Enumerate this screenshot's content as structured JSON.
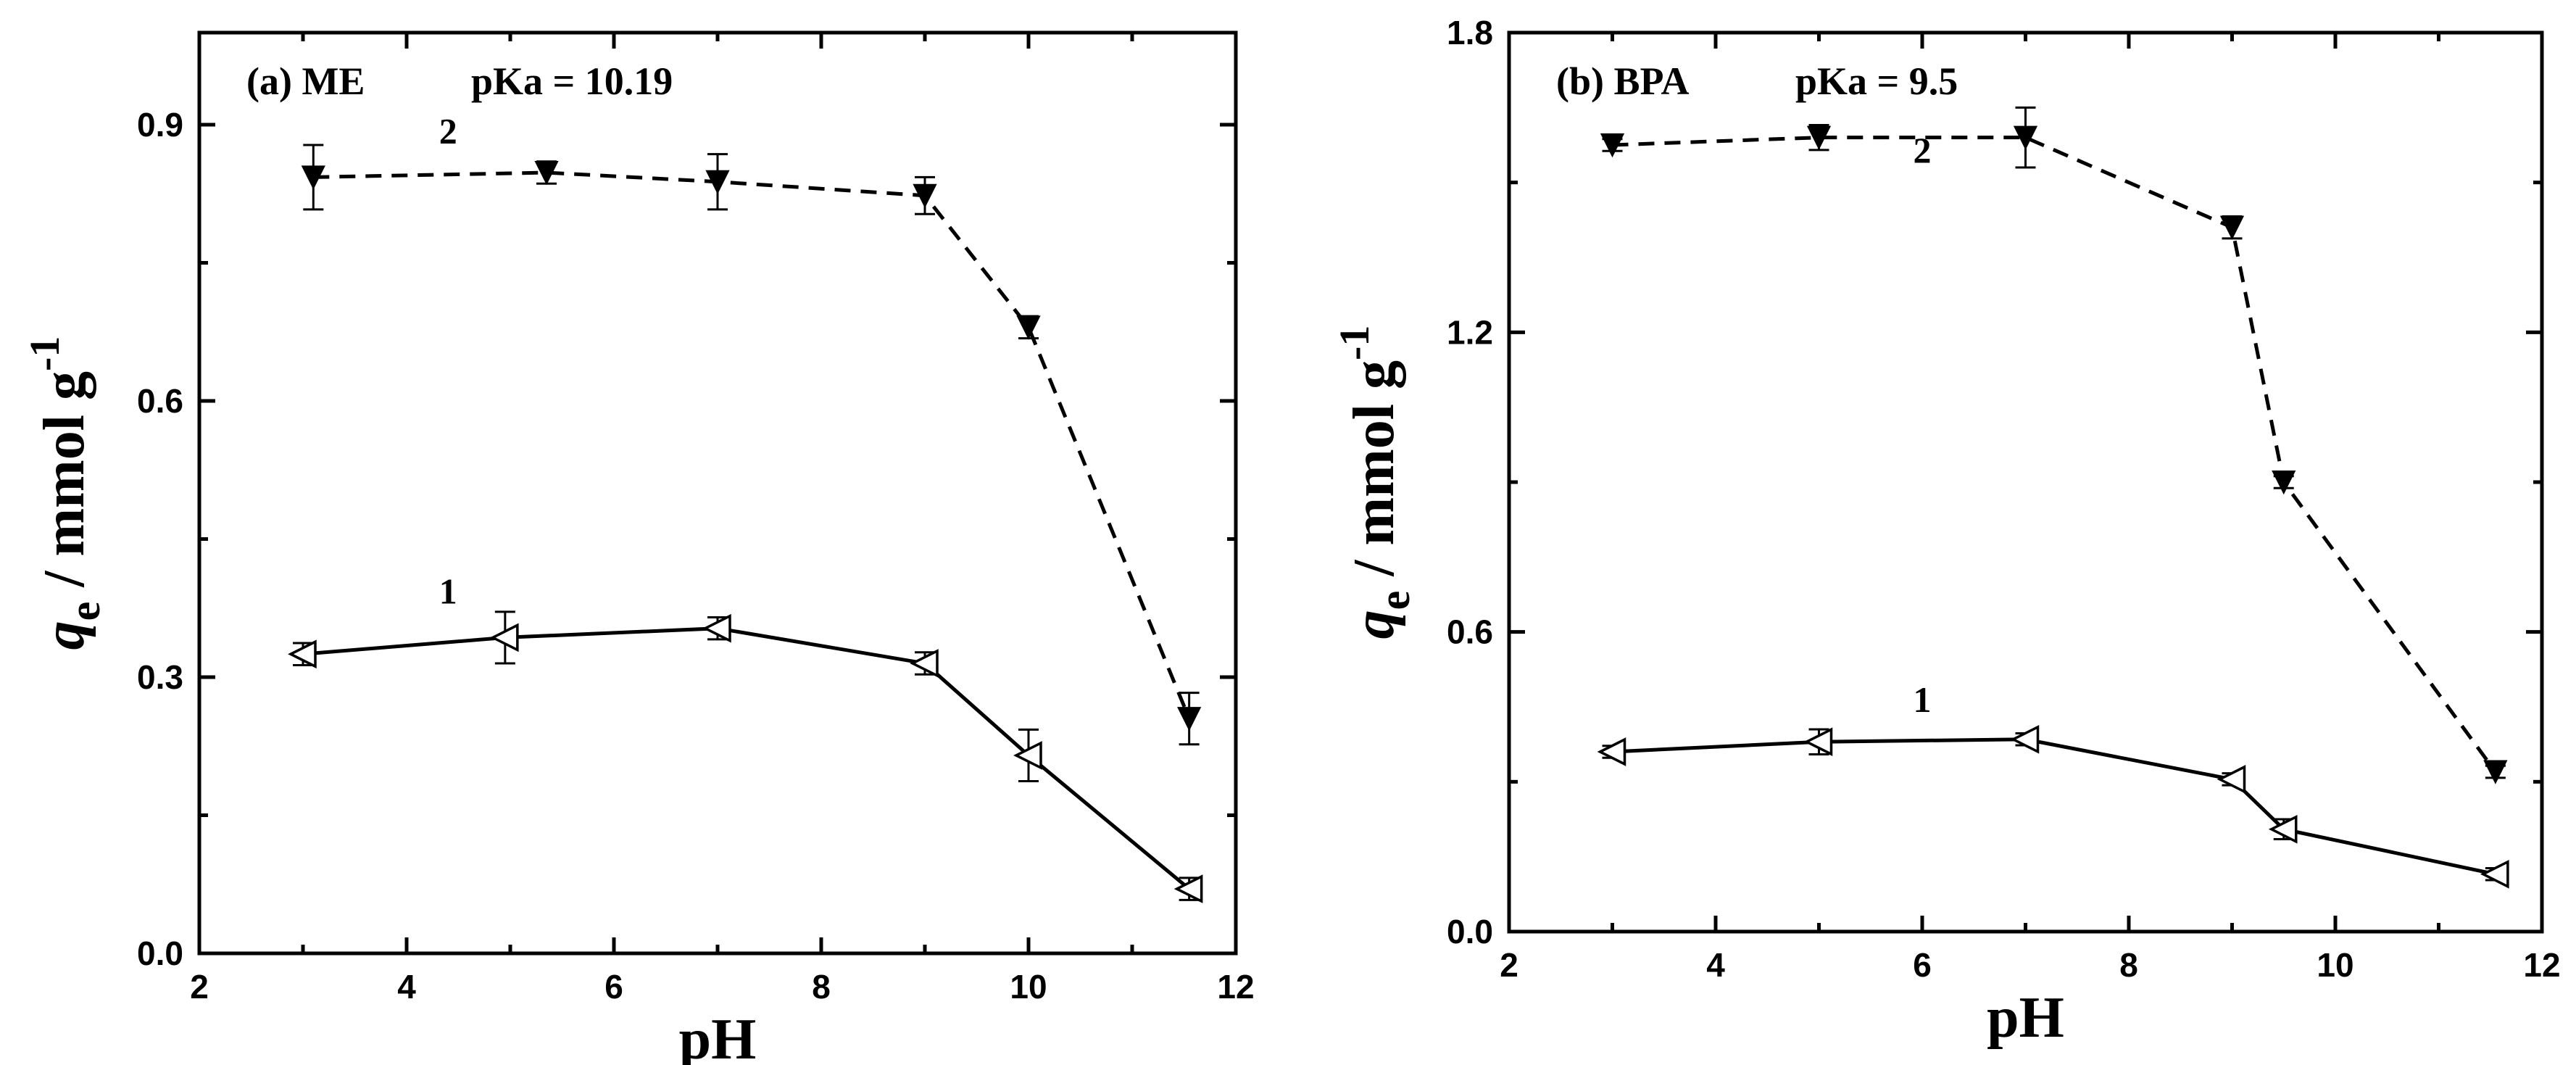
{
  "chart_data": [
    {
      "type": "line",
      "panel_label": "(a) ME",
      "pka_label": "pKa = 10.19",
      "xlabel": "pH",
      "ylabel_main": "q",
      "ylabel_sub": "e",
      "ylabel_rest": " / mmol g",
      "ylabel_sup": "-1",
      "xlim": [
        2,
        12
      ],
      "ylim": [
        0.0,
        1.0
      ],
      "xticks": [
        2,
        4,
        6,
        8,
        10,
        12
      ],
      "xtick_labels": [
        "2",
        "4",
        "6",
        "8",
        "10",
        "12"
      ],
      "yticks": [
        0.0,
        0.3,
        0.6,
        0.9
      ],
      "ytick_labels": [
        "0.0",
        "0.3",
        "0.6",
        "0.9"
      ],
      "series": [
        {
          "label": "1",
          "style": "solid",
          "marker": "open-left-triangle",
          "x": [
            3.0,
            4.95,
            7.0,
            9.0,
            10.0,
            11.55
          ],
          "y": [
            0.325,
            0.343,
            0.353,
            0.315,
            0.215,
            0.07
          ],
          "err": [
            0.012,
            0.028,
            0.012,
            0.012,
            0.028,
            0.012
          ]
        },
        {
          "label": "2",
          "style": "dashed",
          "marker": "filled-down-triangle",
          "x": [
            3.1,
            5.35,
            7.0,
            9.0,
            10.0,
            11.55
          ],
          "y": [
            0.843,
            0.848,
            0.838,
            0.823,
            0.68,
            0.255
          ],
          "err": [
            0.035,
            0.012,
            0.03,
            0.02,
            0.012,
            0.028
          ]
        }
      ],
      "series_label_positions": [
        {
          "x": 4.4,
          "y": 0.38
        },
        {
          "x": 4.4,
          "y": 0.88
        }
      ]
    },
    {
      "type": "line",
      "panel_label": "(b) BPA",
      "pka_label": "pKa = 9.5",
      "xlabel": "pH",
      "ylabel_main": "q",
      "ylabel_sub": "e",
      "ylabel_rest": " / mmol g",
      "ylabel_sup": "-1",
      "xlim": [
        2,
        12
      ],
      "ylim": [
        0.0,
        1.8
      ],
      "xticks": [
        2,
        4,
        6,
        8,
        10,
        12
      ],
      "xtick_labels": [
        "2",
        "4",
        "6",
        "8",
        "10",
        "12"
      ],
      "yticks": [
        0.0,
        0.6,
        1.2,
        1.8
      ],
      "ytick_labels": [
        "0.0",
        "0.6",
        "1.2",
        "1.8"
      ],
      "series": [
        {
          "label": "1",
          "style": "solid",
          "marker": "open-left-triangle",
          "x": [
            3.0,
            5.0,
            7.0,
            9.0,
            9.5,
            11.55
          ],
          "y": [
            0.36,
            0.38,
            0.385,
            0.305,
            0.205,
            0.115
          ],
          "err": [
            0.012,
            0.025,
            0.012,
            0.012,
            0.02,
            0.012
          ]
        },
        {
          "label": "2",
          "style": "dashed",
          "marker": "filled-down-triangle",
          "x": [
            3.0,
            5.0,
            7.0,
            9.0,
            9.5,
            11.55
          ],
          "y": [
            1.575,
            1.59,
            1.59,
            1.41,
            0.9,
            0.32
          ],
          "err": [
            0.012,
            0.025,
            0.06,
            0.022,
            0.012,
            0.012
          ]
        }
      ],
      "series_label_positions": [
        {
          "x": 6.0,
          "y": 0.44
        },
        {
          "x": 6.0,
          "y": 1.54
        }
      ]
    }
  ]
}
